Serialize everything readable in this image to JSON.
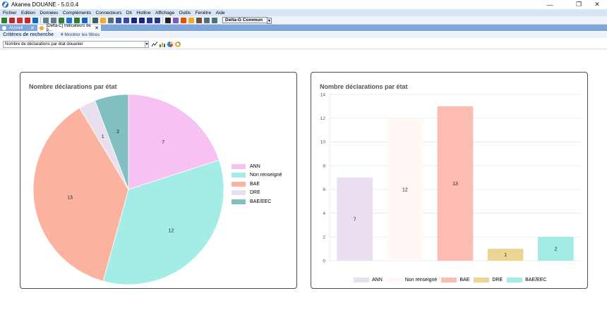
{
  "window": {
    "title": "Akanea DOUANE - 5.0.0.4",
    "minimize": "—",
    "maximize": "❐",
    "close": "✕"
  },
  "menu": [
    "Fichier",
    "Edition",
    "Données",
    "Compléments",
    "Connecteurs",
    "Dti",
    "Hotline",
    "Affichage",
    "Outils",
    "Fenêtre",
    "Aide"
  ],
  "toolbar": {
    "buttons": [
      {
        "icon": "new-doc-icon",
        "color": "#2f7d2f"
      },
      {
        "icon": "pdf-icon",
        "color": "#c62828"
      },
      {
        "icon": "pdf-red-icon",
        "color": "#d32f2f"
      },
      {
        "icon": "doc-icon",
        "color": "#c62828"
      },
      {
        "icon": "list-icon",
        "color": "#1565c0"
      },
      {
        "icon": "gear-icon",
        "color": "#607d8b"
      },
      {
        "icon": "gear-icon",
        "color": "#607d8b"
      },
      {
        "icon": "refresh-icon",
        "color": "#2e7d32"
      },
      {
        "icon": "grid-icon",
        "color": "#1976d2"
      },
      {
        "icon": "export-icon",
        "color": "#2e7d32"
      },
      {
        "icon": "chart-icon",
        "color": "#1565c0"
      },
      {
        "icon": "calc-icon",
        "color": "#455a64"
      },
      {
        "icon": "key-icon",
        "color": "#f9a825"
      },
      {
        "icon": "eye-icon",
        "color": "#546e7a"
      },
      {
        "icon": "user-icon",
        "color": "#3949ab"
      },
      {
        "icon": "tag-icon",
        "color": "#3949ab"
      },
      {
        "icon": "arrow-icon",
        "color": "#1a237e"
      },
      {
        "icon": "sort-icon",
        "color": "#1a237e"
      },
      {
        "icon": "people-icon",
        "color": "#283593"
      },
      {
        "icon": "people-icon",
        "color": "#283593"
      },
      {
        "icon": "lightning-icon",
        "color": "#212121"
      },
      {
        "icon": "check-icon",
        "color": "#7e57c2"
      },
      {
        "icon": "calendar-icon",
        "color": "#e65100"
      },
      {
        "icon": "bulb-icon",
        "color": "#f9a825"
      },
      {
        "icon": "book-icon",
        "color": "#6d4c41"
      },
      {
        "icon": "window-icon",
        "color": "#546e7a"
      },
      {
        "icon": "monitor-icon",
        "color": "#546e7a"
      }
    ],
    "combo": "Delta-G Commun",
    "combo_arrow": "▼"
  },
  "tabs": [
    {
      "label": "Accueil",
      "close": "✕"
    },
    {
      "label": "[Delta-C] Indicateurs de p...",
      "close": "✕"
    }
  ],
  "criteria": {
    "title": "Critères de recherche",
    "show_filters": "Montrer les filtres",
    "toggle": "¥"
  },
  "indicator": {
    "selected": "Nombre de déclarations par état douanier",
    "arrow": "▼"
  },
  "chart_type_icons": [
    "line-chart-icon",
    "bar-chart-icon",
    "pie-chart-icon",
    "donut-chart-icon"
  ],
  "chart_data": [
    {
      "type": "pie",
      "title": "Nombre déclarations par état",
      "categories": [
        "ANN",
        "Non renseigné",
        "BAE",
        "DRE",
        "BAE/EEC"
      ],
      "values": [
        7,
        12,
        13,
        1,
        2
      ],
      "colors": [
        "#f7c2f3",
        "#a3ede6",
        "#fbb3a0",
        "#e8e0ef",
        "#81bfc3"
      ],
      "legend": "right"
    },
    {
      "type": "bar",
      "title": "Nombre déclarations par état",
      "categories": [
        "ANN",
        "Non renseigné",
        "BAE",
        "DRE",
        "BAE/EEC"
      ],
      "values": [
        7,
        12,
        13,
        1,
        2
      ],
      "colors": [
        "#eadff0",
        "#fff8f4",
        "#fcbcb2",
        "#ecd493",
        "#a1ece4"
      ],
      "ylim": [
        0,
        14
      ],
      "yticks": [
        "0",
        "2",
        "4",
        "6",
        "8",
        "10",
        "12",
        "14"
      ],
      "grid": true,
      "legend": "bottom"
    }
  ]
}
